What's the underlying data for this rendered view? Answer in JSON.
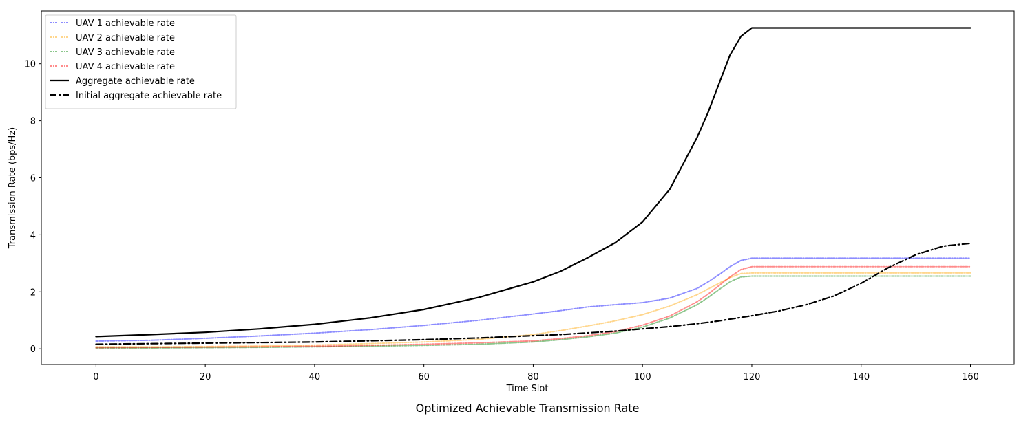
{
  "chart_data": {
    "type": "line",
    "title": "",
    "caption": "Optimized Achievable Transmission Rate",
    "xlabel": "Time Slot",
    "ylabel": "Transmission Rate (bps/Hz)",
    "xlim": [
      -10,
      168
    ],
    "ylim": [
      -0.55,
      11.85
    ],
    "xticks": [
      0,
      20,
      40,
      60,
      80,
      100,
      120,
      140,
      160
    ],
    "yticks": [
      0,
      2,
      4,
      6,
      8,
      10
    ],
    "grid": false,
    "legend_position": "top-left",
    "x": [
      0,
      10,
      20,
      30,
      40,
      50,
      60,
      70,
      80,
      85,
      90,
      95,
      100,
      105,
      110,
      112,
      114,
      116,
      118,
      120,
      125,
      130,
      135,
      140,
      145,
      150,
      155,
      160
    ],
    "series": [
      {
        "name": "UAV 1 achievable rate",
        "color": "#0000ff",
        "style": "dashdot-light",
        "values": [
          0.27,
          0.3,
          0.37,
          0.45,
          0.55,
          0.67,
          0.82,
          1.0,
          1.22,
          1.34,
          1.47,
          1.55,
          1.62,
          1.78,
          2.12,
          2.35,
          2.6,
          2.88,
          3.1,
          3.18,
          3.18,
          3.18,
          3.18,
          3.18,
          3.18,
          3.18,
          3.18,
          3.18
        ]
      },
      {
        "name": "UAV 2 achievable rate",
        "color": "#ffa500",
        "style": "dashdot-light",
        "values": [
          0.07,
          0.07,
          0.08,
          0.1,
          0.13,
          0.18,
          0.24,
          0.33,
          0.5,
          0.64,
          0.8,
          0.98,
          1.2,
          1.5,
          1.9,
          2.1,
          2.3,
          2.5,
          2.64,
          2.66,
          2.66,
          2.66,
          2.66,
          2.66,
          2.66,
          2.66,
          2.66,
          2.66
        ]
      },
      {
        "name": "UAV 3 achievable rate",
        "color": "#008000",
        "style": "dashdot-light",
        "values": [
          0.03,
          0.03,
          0.04,
          0.05,
          0.07,
          0.09,
          0.12,
          0.16,
          0.24,
          0.32,
          0.42,
          0.55,
          0.76,
          1.08,
          1.55,
          1.8,
          2.08,
          2.35,
          2.52,
          2.55,
          2.55,
          2.55,
          2.55,
          2.55,
          2.55,
          2.55,
          2.55,
          2.55
        ]
      },
      {
        "name": "UAV 4 achievable rate",
        "color": "#ff0000",
        "style": "dashdot-light",
        "values": [
          0.04,
          0.05,
          0.06,
          0.07,
          0.09,
          0.12,
          0.16,
          0.21,
          0.28,
          0.36,
          0.46,
          0.6,
          0.83,
          1.15,
          1.65,
          1.92,
          2.22,
          2.52,
          2.78,
          2.88,
          2.88,
          2.88,
          2.88,
          2.88,
          2.88,
          2.88,
          2.88,
          2.88
        ]
      },
      {
        "name": "Aggregate achievable rate",
        "color": "#000000",
        "style": "solid",
        "values": [
          0.43,
          0.5,
          0.58,
          0.7,
          0.86,
          1.08,
          1.38,
          1.8,
          2.35,
          2.72,
          3.2,
          3.72,
          4.45,
          5.6,
          7.42,
          8.3,
          9.3,
          10.3,
          10.96,
          11.26,
          11.26,
          11.26,
          11.26,
          11.26,
          11.26,
          11.26,
          11.26,
          11.26
        ]
      },
      {
        "name": "Initial aggregate achievable rate",
        "color": "#000000",
        "style": "dashdot",
        "values": [
          0.16,
          0.18,
          0.2,
          0.22,
          0.24,
          0.28,
          0.32,
          0.38,
          0.46,
          0.5,
          0.56,
          0.62,
          0.7,
          0.78,
          0.88,
          0.93,
          0.98,
          1.04,
          1.1,
          1.16,
          1.33,
          1.55,
          1.85,
          2.3,
          2.85,
          3.3,
          3.6,
          3.7
        ]
      }
    ]
  }
}
